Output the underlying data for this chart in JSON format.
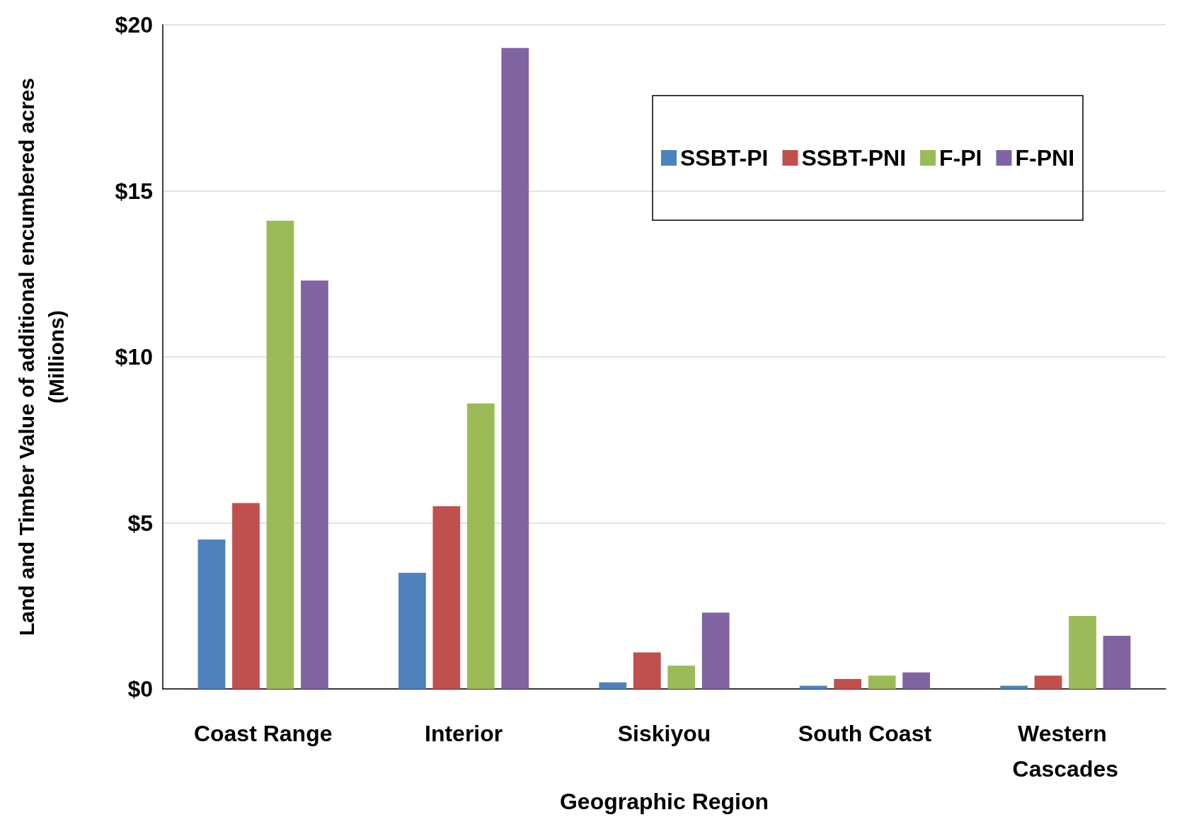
{
  "chart_data": {
    "type": "bar",
    "xlabel": "Geographic Region",
    "ylabel": "Land and Timber Value of additional encumbered acres\n(Millions)",
    "categories": [
      "Coast Range",
      "Interior",
      "Siskiyou",
      "South Coast",
      "Western Cascades"
    ],
    "series": [
      {
        "name": "SSBT-PI",
        "color": "#4f81bd",
        "values": [
          4.5,
          3.5,
          0.2,
          0.1,
          0.1
        ]
      },
      {
        "name": "SSBT-PNI",
        "color": "#c0504d",
        "values": [
          5.6,
          5.5,
          1.1,
          0.3,
          0.4
        ]
      },
      {
        "name": "F-PI",
        "color": "#9bbb59",
        "values": [
          14.1,
          8.6,
          0.7,
          0.4,
          2.2
        ]
      },
      {
        "name": "F-PNI",
        "color": "#8064a2",
        "values": [
          12.3,
          19.3,
          2.3,
          0.5,
          1.6
        ]
      }
    ],
    "ylim": [
      0,
      20
    ],
    "yticks": [
      {
        "value": 0,
        "label": "$0"
      },
      {
        "value": 5,
        "label": "$5"
      },
      {
        "value": 10,
        "label": "$10"
      },
      {
        "value": 15,
        "label": "$15"
      },
      {
        "value": 20,
        "label": "$20"
      }
    ],
    "grid": "y",
    "legend": "top right"
  }
}
